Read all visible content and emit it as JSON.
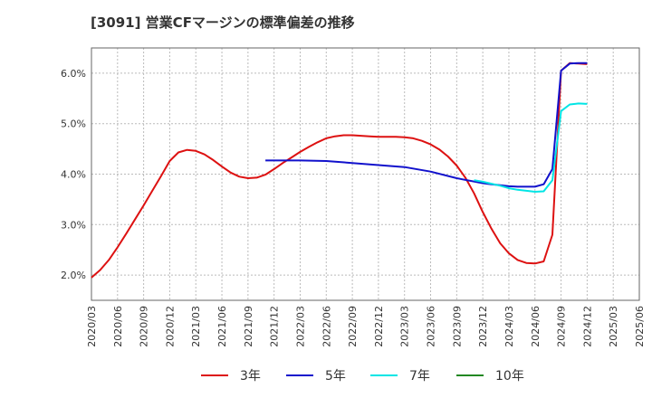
{
  "chart_data": {
    "type": "line",
    "title": "[3091]  営業CFマージンの標準偏差の推移",
    "xlabel": "",
    "ylabel": "",
    "x_range": [
      "2020-03",
      "2025-06"
    ],
    "ylim": [
      1.5,
      6.5
    ],
    "y_ticks": [
      2.0,
      3.0,
      4.0,
      5.0,
      6.0
    ],
    "y_tick_labels": [
      "2.0%",
      "3.0%",
      "4.0%",
      "5.0%",
      "6.0%"
    ],
    "x_tick_labels": [
      "2020/03",
      "2020/06",
      "2020/09",
      "2020/12",
      "2021/03",
      "2021/06",
      "2021/09",
      "2021/12",
      "2022/03",
      "2022/06",
      "2022/09",
      "2022/12",
      "2023/03",
      "2023/06",
      "2023/09",
      "2023/12",
      "2024/03",
      "2024/06",
      "2024/09",
      "2024/12",
      "2025/03",
      "2025/06"
    ],
    "grid": true,
    "legend_position": "bottom",
    "series": [
      {
        "name": "3年",
        "color": "#dd1111",
        "points": [
          [
            "2020-03",
            1.95
          ],
          [
            "2020-04",
            2.1
          ],
          [
            "2020-05",
            2.3
          ],
          [
            "2020-06",
            2.55
          ],
          [
            "2020-07",
            2.82
          ],
          [
            "2020-08",
            3.1
          ],
          [
            "2020-09",
            3.38
          ],
          [
            "2020-10",
            3.67
          ],
          [
            "2020-11",
            3.96
          ],
          [
            "2020-12",
            4.26
          ],
          [
            "2021-01",
            4.43
          ],
          [
            "2021-02",
            4.48
          ],
          [
            "2021-03",
            4.46
          ],
          [
            "2021-04",
            4.39
          ],
          [
            "2021-05",
            4.28
          ],
          [
            "2021-06",
            4.15
          ],
          [
            "2021-07",
            4.03
          ],
          [
            "2021-08",
            3.95
          ],
          [
            "2021-09",
            3.92
          ],
          [
            "2021-10",
            3.93
          ],
          [
            "2021-11",
            3.99
          ],
          [
            "2021-12",
            4.1
          ],
          [
            "2022-01",
            4.22
          ],
          [
            "2022-02",
            4.33
          ],
          [
            "2022-03",
            4.44
          ],
          [
            "2022-04",
            4.54
          ],
          [
            "2022-05",
            4.63
          ],
          [
            "2022-06",
            4.71
          ],
          [
            "2022-07",
            4.75
          ],
          [
            "2022-08",
            4.77
          ],
          [
            "2022-09",
            4.77
          ],
          [
            "2022-10",
            4.76
          ],
          [
            "2022-11",
            4.75
          ],
          [
            "2022-12",
            4.74
          ],
          [
            "2023-01",
            4.74
          ],
          [
            "2023-02",
            4.74
          ],
          [
            "2023-03",
            4.73
          ],
          [
            "2023-04",
            4.71
          ],
          [
            "2023-05",
            4.66
          ],
          [
            "2023-06",
            4.59
          ],
          [
            "2023-07",
            4.49
          ],
          [
            "2023-08",
            4.35
          ],
          [
            "2023-09",
            4.17
          ],
          [
            "2023-10",
            3.93
          ],
          [
            "2023-11",
            3.62
          ],
          [
            "2023-12",
            3.25
          ],
          [
            "2024-01",
            2.92
          ],
          [
            "2024-02",
            2.63
          ],
          [
            "2024-03",
            2.43
          ],
          [
            "2024-04",
            2.3
          ],
          [
            "2024-05",
            2.24
          ],
          [
            "2024-06",
            2.23
          ],
          [
            "2024-07",
            2.27
          ],
          [
            "2024-08",
            2.8
          ],
          [
            "2024-09",
            6.05
          ],
          [
            "2024-10",
            6.2
          ],
          [
            "2024-11",
            6.19
          ],
          [
            "2024-12",
            6.18
          ]
        ]
      },
      {
        "name": "5年",
        "color": "#1111cc",
        "points": [
          [
            "2021-11",
            4.27
          ],
          [
            "2021-12",
            4.27
          ],
          [
            "2022-01",
            4.27
          ],
          [
            "2022-03",
            4.27
          ],
          [
            "2022-06",
            4.26
          ],
          [
            "2022-09",
            4.22
          ],
          [
            "2022-12",
            4.18
          ],
          [
            "2023-03",
            4.14
          ],
          [
            "2023-06",
            4.05
          ],
          [
            "2023-09",
            3.92
          ],
          [
            "2023-12",
            3.82
          ],
          [
            "2024-01",
            3.8
          ],
          [
            "2024-02",
            3.78
          ],
          [
            "2024-03",
            3.76
          ],
          [
            "2024-04",
            3.75
          ],
          [
            "2024-05",
            3.75
          ],
          [
            "2024-06",
            3.75
          ],
          [
            "2024-07",
            3.8
          ],
          [
            "2024-08",
            4.1
          ],
          [
            "2024-09",
            6.05
          ],
          [
            "2024-10",
            6.19
          ],
          [
            "2024-11",
            6.2
          ],
          [
            "2024-12",
            6.2
          ]
        ]
      },
      {
        "name": "7年",
        "color": "#00e5e5",
        "points": [
          [
            "2023-11",
            3.88
          ],
          [
            "2023-12",
            3.85
          ],
          [
            "2024-01",
            3.81
          ],
          [
            "2024-02",
            3.77
          ],
          [
            "2024-03",
            3.72
          ],
          [
            "2024-04",
            3.69
          ],
          [
            "2024-05",
            3.67
          ],
          [
            "2024-06",
            3.65
          ],
          [
            "2024-07",
            3.66
          ],
          [
            "2024-08",
            3.88
          ],
          [
            "2024-09",
            5.25
          ],
          [
            "2024-10",
            5.38
          ],
          [
            "2024-11",
            5.4
          ],
          [
            "2024-12",
            5.39
          ]
        ]
      },
      {
        "name": "10年",
        "color": "#228822",
        "points": []
      }
    ]
  }
}
